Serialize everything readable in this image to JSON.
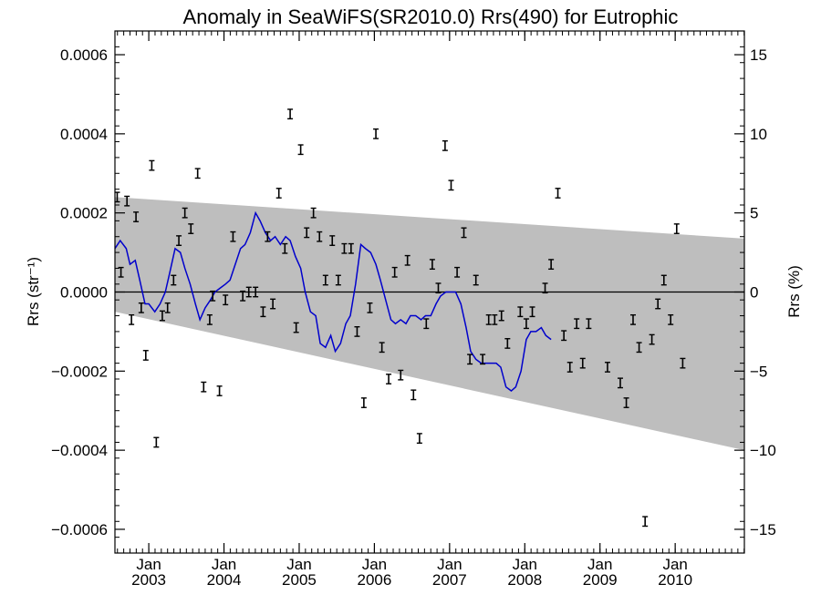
{
  "chart_data": {
    "type": "scatter",
    "title": "Anomaly in SeaWiFS(SR2010.0) Rrs(490) for Eutrophic",
    "ylabel_left": "Rrs (str⁻¹)",
    "ylabel_right": "Rrs (%)",
    "xlim": [
      2002.55,
      2010.92
    ],
    "ylim": [
      -0.00066,
      0.00066
    ],
    "y_ticks_left": [
      {
        "value": 0.0006,
        "label": "0.0006"
      },
      {
        "value": 0.0004,
        "label": "0.0004"
      },
      {
        "value": 0.0002,
        "label": "0.0002"
      },
      {
        "value": 0.0,
        "label": "0.0000"
      },
      {
        "value": -0.0002,
        "label": "−0.0002"
      },
      {
        "value": -0.0004,
        "label": "−0.0004"
      },
      {
        "value": -0.0006,
        "label": "−0.0006"
      }
    ],
    "y_ticks_right": [
      {
        "value": 0.0006,
        "label": "15"
      },
      {
        "value": 0.0004,
        "label": "10"
      },
      {
        "value": 0.0002,
        "label": "5"
      },
      {
        "value": 0.0,
        "label": "0"
      },
      {
        "value": -0.0002,
        "label": "−5"
      },
      {
        "value": -0.0004,
        "label": "−10"
      },
      {
        "value": -0.0006,
        "label": "−15"
      }
    ],
    "x_ticks": [
      {
        "value": 2003.0,
        "month": "Jan",
        "year": "2003"
      },
      {
        "value": 2004.0,
        "month": "Jan",
        "year": "2004"
      },
      {
        "value": 2005.0,
        "month": "Jan",
        "year": "2005"
      },
      {
        "value": 2006.0,
        "month": "Jan",
        "year": "2006"
      },
      {
        "value": 2007.0,
        "month": "Jan",
        "year": "2007"
      },
      {
        "value": 2008.0,
        "month": "Jan",
        "year": "2008"
      },
      {
        "value": 2009.0,
        "month": "Jan",
        "year": "2009"
      },
      {
        "value": 2010.0,
        "month": "Jan",
        "year": "2010"
      }
    ],
    "shaded_band": {
      "upper": [
        [
          2002.55,
          0.00024
        ],
        [
          2010.92,
          0.000135
        ]
      ],
      "lower": [
        [
          2002.55,
          -5e-05
        ],
        [
          2010.92,
          -0.0004
        ]
      ],
      "color": "#bebebe"
    },
    "zero_line": 0.0,
    "error_half_width": 1.2e-05,
    "points": [
      [
        2002.58,
        0.00024
      ],
      [
        2002.63,
        5e-05
      ],
      [
        2002.71,
        0.00023
      ],
      [
        2002.77,
        -7e-05
      ],
      [
        2002.83,
        0.00019
      ],
      [
        2002.9,
        -4e-05
      ],
      [
        2002.96,
        -0.00016
      ],
      [
        2003.04,
        0.00032
      ],
      [
        2003.1,
        -0.00038
      ],
      [
        2003.18,
        -6e-05
      ],
      [
        2003.25,
        -4e-05
      ],
      [
        2003.33,
        3e-05
      ],
      [
        2003.4,
        0.00013
      ],
      [
        2003.48,
        0.0002
      ],
      [
        2003.56,
        0.00016
      ],
      [
        2003.65,
        0.0003
      ],
      [
        2003.73,
        -0.00024
      ],
      [
        2003.81,
        -7e-05
      ],
      [
        2003.85,
        -1e-05
      ],
      [
        2003.94,
        -0.00025
      ],
      [
        2004.02,
        -2e-05
      ],
      [
        2004.12,
        0.00014
      ],
      [
        2004.25,
        -1e-05
      ],
      [
        2004.33,
        0.0
      ],
      [
        2004.42,
        0.0
      ],
      [
        2004.52,
        -5e-05
      ],
      [
        2004.58,
        0.00014
      ],
      [
        2004.65,
        -3e-05
      ],
      [
        2004.73,
        0.00025
      ],
      [
        2004.81,
        0.00011
      ],
      [
        2004.88,
        0.00045
      ],
      [
        2004.96,
        -9e-05
      ],
      [
        2005.02,
        0.00036
      ],
      [
        2005.1,
        0.00015
      ],
      [
        2005.19,
        0.0002
      ],
      [
        2005.27,
        0.00014
      ],
      [
        2005.35,
        3e-05
      ],
      [
        2005.44,
        0.00013
      ],
      [
        2005.52,
        3e-05
      ],
      [
        2005.6,
        0.00011
      ],
      [
        2005.69,
        0.00011
      ],
      [
        2005.77,
        -0.0001
      ],
      [
        2005.86,
        -0.00028
      ],
      [
        2005.94,
        -4e-05
      ],
      [
        2006.02,
        0.0004
      ],
      [
        2006.1,
        -0.00014
      ],
      [
        2006.19,
        -0.00022
      ],
      [
        2006.27,
        5e-05
      ],
      [
        2006.35,
        -0.00021
      ],
      [
        2006.44,
        8e-05
      ],
      [
        2006.52,
        -0.00026
      ],
      [
        2006.6,
        -0.00037
      ],
      [
        2006.69,
        -8e-05
      ],
      [
        2006.77,
        7e-05
      ],
      [
        2006.85,
        1e-05
      ],
      [
        2006.94,
        0.00037
      ],
      [
        2007.02,
        0.00027
      ],
      [
        2007.1,
        5e-05
      ],
      [
        2007.19,
        0.00015
      ],
      [
        2007.27,
        -0.00017
      ],
      [
        2007.35,
        3e-05
      ],
      [
        2007.44,
        -0.00017
      ],
      [
        2007.52,
        -7e-05
      ],
      [
        2007.6,
        -7e-05
      ],
      [
        2007.69,
        -6e-05
      ],
      [
        2007.77,
        -0.00013
      ],
      [
        2007.94,
        -5e-05
      ],
      [
        2008.02,
        -8e-05
      ],
      [
        2008.1,
        -5e-05
      ],
      [
        2008.27,
        1e-05
      ],
      [
        2008.35,
        7e-05
      ],
      [
        2008.44,
        0.00025
      ],
      [
        2008.52,
        -0.00011
      ],
      [
        2008.6,
        -0.00019
      ],
      [
        2008.69,
        -8e-05
      ],
      [
        2008.77,
        -0.00018
      ],
      [
        2008.85,
        -8e-05
      ],
      [
        2009.1,
        -0.00019
      ],
      [
        2009.27,
        -0.00023
      ],
      [
        2009.35,
        -0.00028
      ],
      [
        2009.44,
        -7e-05
      ],
      [
        2009.52,
        -0.00014
      ],
      [
        2009.6,
        -0.00058
      ],
      [
        2009.69,
        -0.00012
      ],
      [
        2009.77,
        -3e-05
      ],
      [
        2009.85,
        3e-05
      ],
      [
        2009.94,
        -7e-05
      ],
      [
        2010.02,
        0.00016
      ],
      [
        2010.1,
        -0.00018
      ]
    ],
    "trend_line": {
      "color": "#0000cc",
      "points": [
        [
          2002.55,
          0.00011
        ],
        [
          2002.62,
          0.00013
        ],
        [
          2002.7,
          0.00011
        ],
        [
          2002.75,
          7e-05
        ],
        [
          2002.82,
          8e-05
        ],
        [
          2002.88,
          3e-05
        ],
        [
          2002.95,
          -3e-05
        ],
        [
          2003.0,
          -3e-05
        ],
        [
          2003.08,
          -5e-05
        ],
        [
          2003.15,
          -3e-05
        ],
        [
          2003.22,
          0.0
        ],
        [
          2003.28,
          5e-05
        ],
        [
          2003.35,
          0.00011
        ],
        [
          2003.42,
          0.0001
        ],
        [
          2003.48,
          6e-05
        ],
        [
          2003.55,
          2e-05
        ],
        [
          2003.62,
          -3e-05
        ],
        [
          2003.68,
          -7e-05
        ],
        [
          2003.75,
          -4e-05
        ],
        [
          2003.82,
          -2e-05
        ],
        [
          2003.88,
          0.0
        ],
        [
          2003.95,
          1e-05
        ],
        [
          2004.02,
          2e-05
        ],
        [
          2004.08,
          3e-05
        ],
        [
          2004.15,
          7e-05
        ],
        [
          2004.22,
          0.00011
        ],
        [
          2004.28,
          0.00012
        ],
        [
          2004.35,
          0.00015
        ],
        [
          2004.42,
          0.0002
        ],
        [
          2004.48,
          0.00018
        ],
        [
          2004.55,
          0.00015
        ],
        [
          2004.62,
          0.00013
        ],
        [
          2004.68,
          0.00014
        ],
        [
          2004.75,
          0.00012
        ],
        [
          2004.82,
          0.00014
        ],
        [
          2004.88,
          0.00013
        ],
        [
          2004.95,
          9e-05
        ],
        [
          2005.02,
          6e-05
        ],
        [
          2005.08,
          0.0
        ],
        [
          2005.15,
          -5e-05
        ],
        [
          2005.22,
          -6e-05
        ],
        [
          2005.28,
          -0.00013
        ],
        [
          2005.35,
          -0.00014
        ],
        [
          2005.42,
          -0.00011
        ],
        [
          2005.48,
          -0.00015
        ],
        [
          2005.55,
          -0.00013
        ],
        [
          2005.62,
          -8e-05
        ],
        [
          2005.68,
          -6e-05
        ],
        [
          2005.75,
          2e-05
        ],
        [
          2005.82,
          0.00012
        ],
        [
          2005.88,
          0.00011
        ],
        [
          2005.95,
          0.0001
        ],
        [
          2006.02,
          7e-05
        ],
        [
          2006.08,
          3e-05
        ],
        [
          2006.15,
          -2e-05
        ],
        [
          2006.22,
          -7e-05
        ],
        [
          2006.28,
          -8e-05
        ],
        [
          2006.35,
          -7e-05
        ],
        [
          2006.42,
          -8e-05
        ],
        [
          2006.48,
          -6e-05
        ],
        [
          2006.55,
          -6e-05
        ],
        [
          2006.62,
          -7e-05
        ],
        [
          2006.68,
          -6e-05
        ],
        [
          2006.75,
          -6e-05
        ],
        [
          2006.82,
          -3e-05
        ],
        [
          2006.88,
          -1e-05
        ],
        [
          2006.95,
          0.0
        ],
        [
          2007.02,
          0.0
        ],
        [
          2007.08,
          0.0
        ],
        [
          2007.15,
          -3e-05
        ],
        [
          2007.22,
          -9e-05
        ],
        [
          2007.28,
          -0.00015
        ],
        [
          2007.35,
          -0.00017
        ],
        [
          2007.42,
          -0.00018
        ],
        [
          2007.48,
          -0.00018
        ],
        [
          2007.55,
          -0.00018
        ],
        [
          2007.62,
          -0.00018
        ],
        [
          2007.68,
          -0.00019
        ],
        [
          2007.75,
          -0.00024
        ],
        [
          2007.82,
          -0.00025
        ],
        [
          2007.88,
          -0.00024
        ],
        [
          2007.95,
          -0.0002
        ],
        [
          2008.02,
          -0.00012
        ],
        [
          2008.08,
          -0.0001
        ],
        [
          2008.15,
          -0.0001
        ],
        [
          2008.22,
          -9e-05
        ],
        [
          2008.28,
          -0.00011
        ],
        [
          2008.35,
          -0.00012
        ]
      ]
    }
  }
}
